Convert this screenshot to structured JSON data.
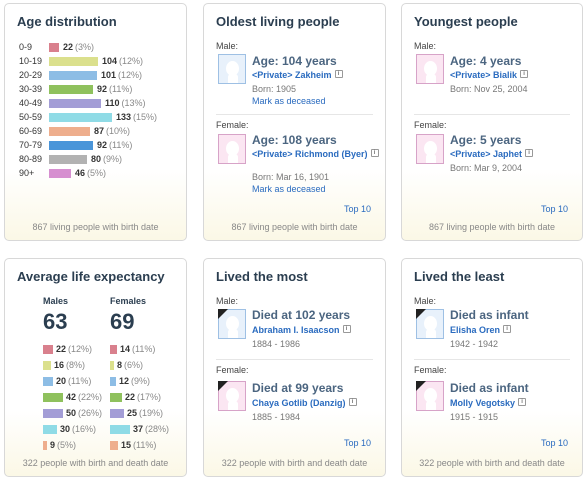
{
  "colors": [
    "#d9808d",
    "#dbe08d",
    "#8dbde5",
    "#8fc15d",
    "#a39dd6",
    "#8fdbe6",
    "#eeae8d",
    "#4a95d9",
    "#b2b2b2",
    "#d68fd0"
  ],
  "age_distribution": {
    "title": "Age distribution",
    "rows": [
      {
        "label": "0-9",
        "count": "22",
        "pct": "(3%)",
        "fraction": 0.165
      },
      {
        "label": "10-19",
        "count": "104",
        "pct": "(12%)",
        "fraction": 0.782
      },
      {
        "label": "20-29",
        "count": "101",
        "pct": "(12%)",
        "fraction": 0.759
      },
      {
        "label": "30-39",
        "count": "92",
        "pct": "(11%)",
        "fraction": 0.692
      },
      {
        "label": "40-49",
        "count": "110",
        "pct": "(13%)",
        "fraction": 0.827
      },
      {
        "label": "50-59",
        "count": "133",
        "pct": "(15%)",
        "fraction": 1.0
      },
      {
        "label": "60-69",
        "count": "87",
        "pct": "(10%)",
        "fraction": 0.654
      },
      {
        "label": "70-79",
        "count": "92",
        "pct": "(11%)",
        "fraction": 0.692
      },
      {
        "label": "80-89",
        "count": "80",
        "pct": "(9%)",
        "fraction": 0.602
      },
      {
        "label": "90+",
        "count": "46",
        "pct": "(5%)",
        "fraction": 0.346
      }
    ],
    "footer": "867 living people with birth date"
  },
  "oldest": {
    "title": "Oldest living people",
    "male_label": "Male:",
    "female_label": "Female:",
    "male": {
      "age": "Age: 104 years",
      "name": "<Private> Zakheim",
      "info": "Born: 1905",
      "link": "Mark as deceased"
    },
    "female": {
      "age": "Age: 108 years",
      "name": "<Private> Richmond (Byer)",
      "info": "Born: Mar 16, 1901",
      "link": "Mark as deceased"
    },
    "top10": "Top 10",
    "footer": "867 living people with birth date"
  },
  "youngest": {
    "title": "Youngest people",
    "male_label": "Male:",
    "female_label": "Female:",
    "male": {
      "age": "Age: 4 years",
      "name": "<Private> Bialik",
      "info": "Born: Nov 25, 2004"
    },
    "female": {
      "age": "Age: 5 years",
      "name": "<Private> Japhet",
      "info": "Born: Mar 9, 2004"
    },
    "top10": "Top 10",
    "footer": "867 living people with birth date"
  },
  "life_expectancy": {
    "title": "Average life expectancy",
    "males_label": "Males",
    "females_label": "Females",
    "males_value": "63",
    "females_value": "69",
    "males": [
      {
        "count": "22",
        "pct": "(12%)",
        "fraction": 0.52
      },
      {
        "count": "16",
        "pct": "(8%)",
        "fraction": 0.38
      },
      {
        "count": "20",
        "pct": "(11%)",
        "fraction": 0.48
      },
      {
        "count": "42",
        "pct": "(22%)",
        "fraction": 1.0
      },
      {
        "count": "50",
        "pct": "(26%)",
        "fraction": 1.19
      },
      {
        "count": "30",
        "pct": "(16%)",
        "fraction": 0.71
      },
      {
        "count": "9",
        "pct": "(5%)",
        "fraction": 0.21
      }
    ],
    "females": [
      {
        "count": "14",
        "pct": "(11%)",
        "fraction": 0.37
      },
      {
        "count": "8",
        "pct": "(6%)",
        "fraction": 0.21
      },
      {
        "count": "12",
        "pct": "(9%)",
        "fraction": 0.32
      },
      {
        "count": "22",
        "pct": "(17%)",
        "fraction": 0.59
      },
      {
        "count": "25",
        "pct": "(19%)",
        "fraction": 0.68
      },
      {
        "count": "37",
        "pct": "(28%)",
        "fraction": 1.0
      },
      {
        "count": "15",
        "pct": "(11%)",
        "fraction": 0.41
      }
    ],
    "footer": "322 people with birth and death date"
  },
  "lived_most": {
    "title": "Lived the most",
    "male_label": "Male:",
    "female_label": "Female:",
    "male": {
      "age": "Died at 102 years",
      "name": "Abraham I. Isaacson",
      "info": "1884 - 1986"
    },
    "female": {
      "age": "Died at 99 years",
      "name": "Chaya Gotlib (Danzig)",
      "info": "1885 - 1984"
    },
    "top10": "Top 10",
    "footer": "322 people with birth and death date"
  },
  "lived_least": {
    "title": "Lived the least",
    "male_label": "Male:",
    "female_label": "Female:",
    "male": {
      "age": "Died as infant",
      "name": "Elisha Oren",
      "info": "1942 - 1942"
    },
    "female": {
      "age": "Died as infant",
      "name": "Molly Vegotsky",
      "info": "1915 - 1915"
    },
    "top10": "Top 10",
    "footer": "322 people with birth and death date"
  }
}
